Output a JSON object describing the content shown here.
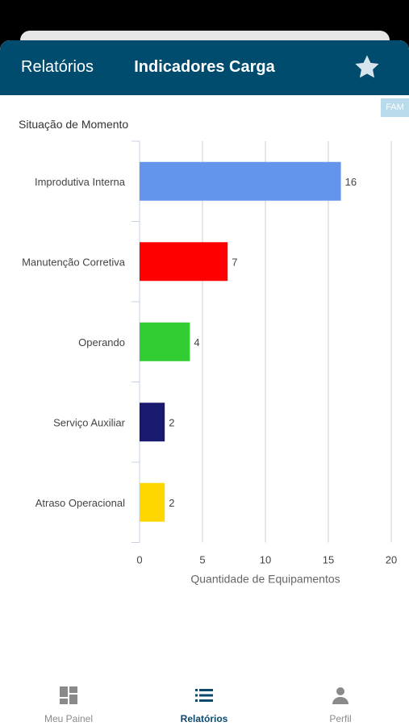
{
  "header": {
    "back_label": "Relatórios",
    "title": "Indicadores Carga"
  },
  "badge": "FAM",
  "chart_title": "Situação de Momento",
  "chart_data": {
    "type": "bar",
    "orientation": "horizontal",
    "categories": [
      "Improdutiva Interna",
      "Manutenção Corretiva",
      "Operando",
      "Serviço Auxiliar",
      "Atraso Operacional"
    ],
    "values": [
      16,
      7,
      4,
      2,
      2
    ],
    "colors": [
      "#6495ed",
      "#ff0000",
      "#32cd32",
      "#191970",
      "#ffd700"
    ],
    "xlabel": "Quantidade de Equipamentos",
    "xlim": [
      0,
      20
    ],
    "xticks": [
      0,
      5,
      10,
      15,
      20
    ],
    "grid": true
  },
  "tabs": [
    {
      "label": "Meu Painel",
      "icon": "dashboard-icon",
      "active": false
    },
    {
      "label": "Relatórios",
      "icon": "list-icon",
      "active": true
    },
    {
      "label": "Perfil",
      "icon": "person-icon",
      "active": false
    }
  ],
  "colors": {
    "header_bg": "#004c6f",
    "accent": "#0a4a6e",
    "inactive_tab": "#8a8a8a"
  }
}
